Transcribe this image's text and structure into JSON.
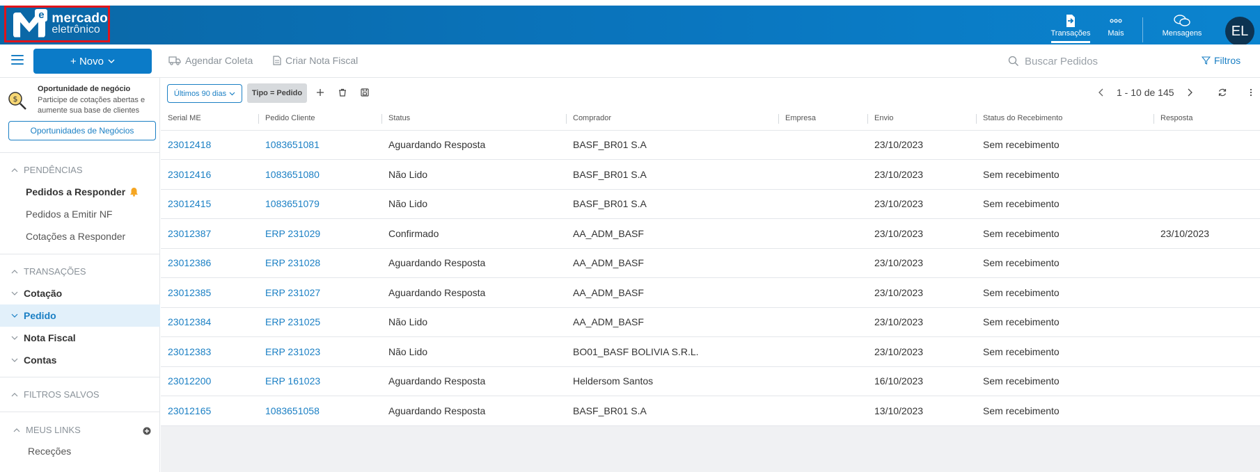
{
  "header": {
    "logo_line1": "mercado",
    "logo_line2": "eletrônico",
    "logo_letter": "e",
    "nav": [
      {
        "label": "Transações",
        "icon": "document-arrow-icon",
        "active": true
      },
      {
        "label": "Mais",
        "icon": "more-dots-icon",
        "active": false
      },
      {
        "label": "Mensagens",
        "icon": "chat-bubbles-icon",
        "active": false
      }
    ],
    "avatar_initials": "EL"
  },
  "toolbar": {
    "new_label": "+ Novo",
    "actions": [
      {
        "label": "Agendar Coleta",
        "icon": "truck-icon"
      },
      {
        "label": "Criar Nota Fiscal",
        "icon": "file-icon"
      }
    ],
    "search_placeholder": "Buscar Pedidos",
    "filters_label": "Filtros"
  },
  "sidebar": {
    "opportunity": {
      "title": "Oportunidade de negócio",
      "description": "Participe de cotações abertas e aumente sua base de clientes",
      "button": "Oportunidades de Negócios"
    },
    "pendencias": {
      "title": "PENDÊNCIAS",
      "items": [
        "Pedidos a Responder",
        "Pedidos a Emitir NF",
        "Cotações a Responder"
      ]
    },
    "transacoes": {
      "title": "TRANSAÇÕES",
      "items": [
        "Cotação",
        "Pedido",
        "Nota Fiscal",
        "Contas"
      ]
    },
    "filtros_salvos": {
      "title": "FILTROS SALVOS"
    },
    "meus_links": {
      "title": "MEUS LINKS",
      "items": [
        "Receções"
      ]
    }
  },
  "filterbar": {
    "period": "Últimos 90 dias",
    "tag": "Tipo = Pedido",
    "pagination": "1 - 10 de 145"
  },
  "table": {
    "columns": [
      "Serial ME",
      "Pedido Cliente",
      "Status",
      "Comprador",
      "Empresa",
      "Envio",
      "Status do Recebimento",
      "Resposta"
    ],
    "rows": [
      [
        "23012418",
        "1083651081",
        "Aguardando Resposta",
        "BASF_BR01 S.A",
        "",
        "23/10/2023",
        "Sem recebimento",
        ""
      ],
      [
        "23012416",
        "1083651080",
        "Não Lido",
        "BASF_BR01 S.A",
        "",
        "23/10/2023",
        "Sem recebimento",
        ""
      ],
      [
        "23012415",
        "1083651079",
        "Não Lido",
        "BASF_BR01 S.A",
        "",
        "23/10/2023",
        "Sem recebimento",
        ""
      ],
      [
        "23012387",
        "ERP 231029",
        "Confirmado",
        "AA_ADM_BASF",
        "",
        "23/10/2023",
        "Sem recebimento",
        "23/10/2023"
      ],
      [
        "23012386",
        "ERP 231028",
        "Aguardando Resposta",
        "AA_ADM_BASF",
        "",
        "23/10/2023",
        "Sem recebimento",
        ""
      ],
      [
        "23012385",
        "ERP 231027",
        "Aguardando Resposta",
        "AA_ADM_BASF",
        "",
        "23/10/2023",
        "Sem recebimento",
        ""
      ],
      [
        "23012384",
        "ERP 231025",
        "Não Lido",
        "AA_ADM_BASF",
        "",
        "23/10/2023",
        "Sem recebimento",
        ""
      ],
      [
        "23012383",
        "ERP 231023",
        "Não Lido",
        "BO01_BASF BOLIVIA S.R.L.",
        "",
        "23/10/2023",
        "Sem recebimento",
        ""
      ],
      [
        "23012200",
        "ERP 161023",
        "Aguardando Resposta",
        "Heldersom Santos",
        "",
        "16/10/2023",
        "Sem recebimento",
        ""
      ],
      [
        "23012165",
        "1083651058",
        "Aguardando Resposta",
        "BASF_BR01 S.A",
        "",
        "13/10/2023",
        "Sem recebimento",
        ""
      ]
    ]
  },
  "colors": {
    "brand": "#0b7bc8",
    "link": "#1a7fc4",
    "highlight": "#e2f0fa",
    "bell": "#f5a623"
  }
}
